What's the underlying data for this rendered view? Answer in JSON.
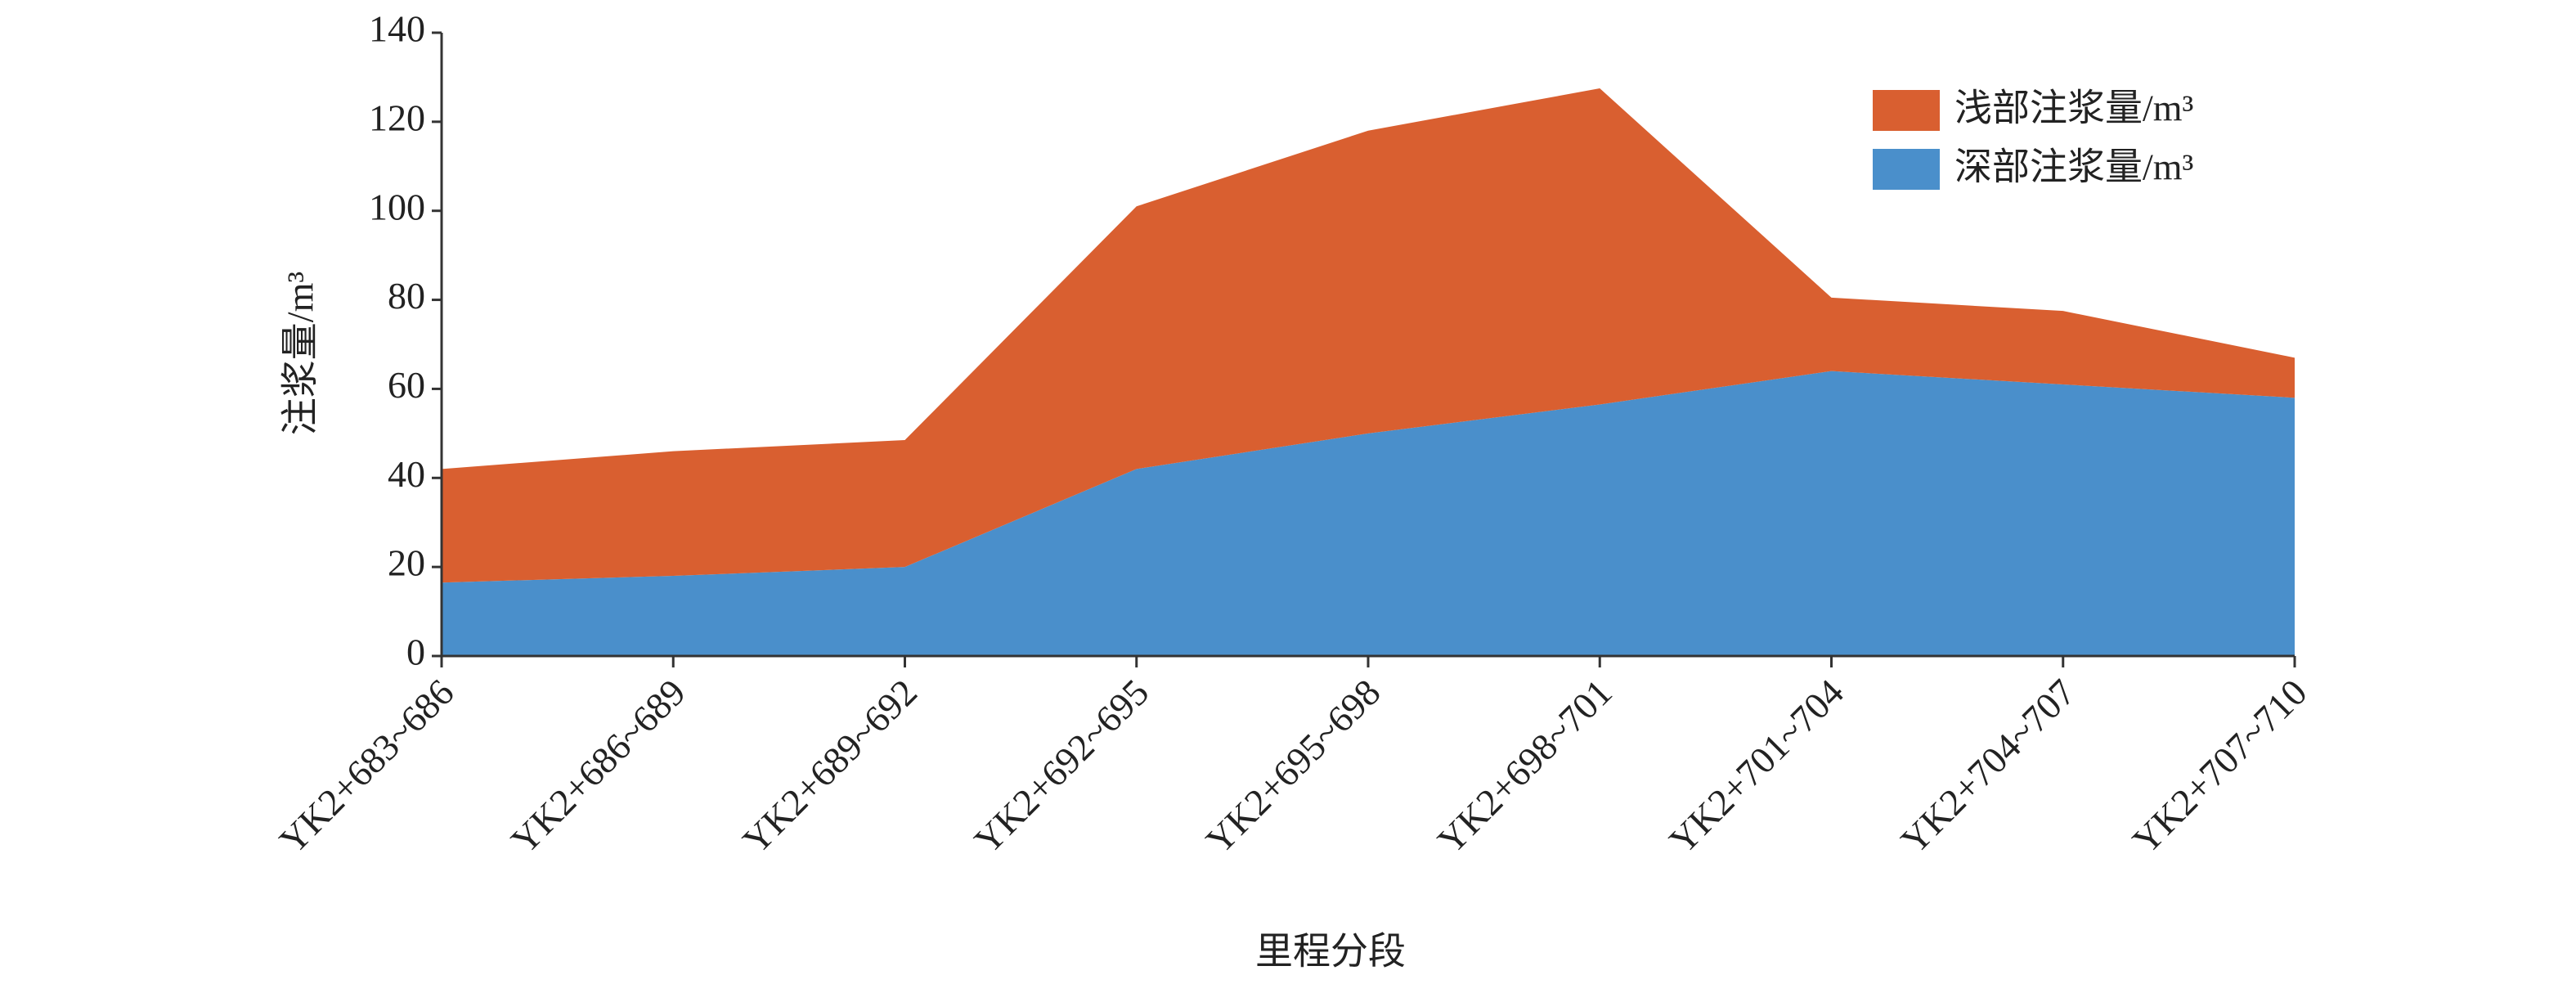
{
  "chart_data": {
    "type": "stacked_area",
    "x_label": "里程分段",
    "y_label": "注浆量/m³",
    "categories": [
      "YK2+683~686",
      "YK2+686~689",
      "YK2+689~692",
      "YK2+692~695",
      "YK2+695~698",
      "YK2+698~701",
      "YK2+701~704",
      "YK2+704~707",
      "YK2+707~710"
    ],
    "series": [
      {
        "name": "深部注浆量/m³",
        "color": "#4a8fcb",
        "values": [
          16.5,
          18,
          20,
          42,
          50,
          56.5,
          64,
          61,
          58
        ]
      },
      {
        "name": "浅部注浆量/m³",
        "color": "#d95f30",
        "values": [
          25.5,
          28,
          28.5,
          59,
          68,
          71,
          16.5,
          16.5,
          9
        ]
      }
    ],
    "ylim": [
      0,
      140
    ],
    "yticks": [
      0,
      20,
      40,
      60,
      80,
      100,
      120,
      140
    ],
    "legend": "top-right"
  }
}
